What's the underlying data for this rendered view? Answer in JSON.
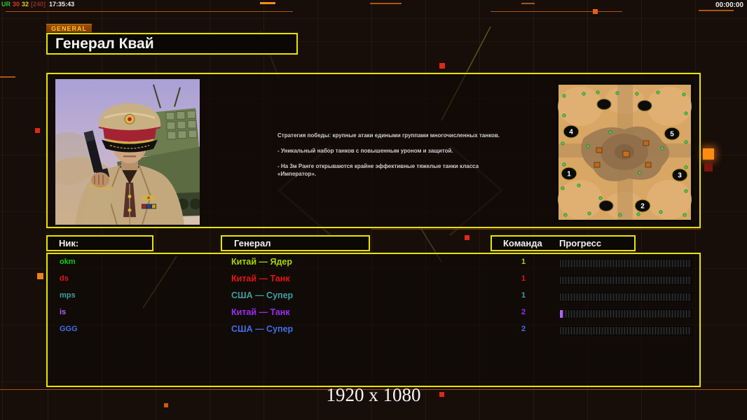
{
  "hud": {
    "debug_ur": "UR",
    "debug_fps": "30",
    "debug_ms": "32",
    "debug_bracket": "[240]",
    "debug_time": "17:35:43",
    "clock": "00:00:00",
    "resolution_label": "1920 x 1080"
  },
  "header": {
    "tab_label": "GENERAL",
    "title": "Генерал Квай"
  },
  "briefing": {
    "lines": [
      "Стратегия победы: крупные атаки едиными группами многочисленных танков.",
      "- Уникальный набор танков с повышенным уроном и защитой.",
      "- На 3м Ранге открываются крайне эффективные тяжелые танки класса «Император»."
    ]
  },
  "map_preview": {
    "slot_numbers": [
      "1",
      "2",
      "3",
      "4",
      "5"
    ]
  },
  "roster": {
    "headers": {
      "nick": "Ник:",
      "general": "Генерал",
      "team": "Команда",
      "progress": "Прогресс"
    },
    "players": [
      {
        "nick": "okm",
        "general": "Китай — Ядер",
        "team": "1",
        "nick_color": "#00d20a",
        "color": "#a8d400",
        "progress_pct": 0
      },
      {
        "nick": "ds",
        "general": "Китай — Танк",
        "team": "1",
        "nick_color": "#e81414",
        "color": "#e81414",
        "progress_pct": 0
      },
      {
        "nick": "mps",
        "general": "США — Супер",
        "team": "1",
        "nick_color": "#3f9ea2",
        "color": "#3f9ea2",
        "progress_pct": 0
      },
      {
        "nick": "is",
        "general": "Китай — Танк",
        "team": "2",
        "nick_color": "#b560ff",
        "color": "#9a2cf0",
        "progress_pct": 2
      },
      {
        "nick": "GGG",
        "general": "США — Супер",
        "team": "2",
        "nick_color": "#3f6fe8",
        "color": "#3f6fe8",
        "progress_pct": 0
      }
    ]
  },
  "colors": {
    "accent_yellow": "#e4e400",
    "accent_orange": "#b85e14",
    "tab_bg": "#8a4200",
    "tab_text": "#ffc61c",
    "debug_ur_color": "#2fc22f",
    "debug_fps_color": "#e03424",
    "debug_ms_color": "#d8d226",
    "debug_bracket_color": "#8a2f22"
  }
}
